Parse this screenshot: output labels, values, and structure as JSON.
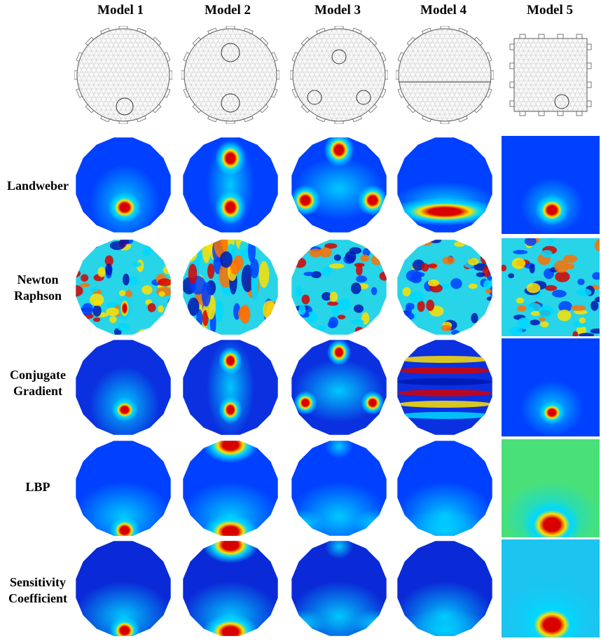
{
  "models": [
    "Model 1",
    "Model 2",
    "Model 3",
    "Model 4",
    "Model 5"
  ],
  "methods": [
    {
      "line1": "Landweber",
      "line2": ""
    },
    {
      "line1": "Newton",
      "line2": "Raphson"
    },
    {
      "line1": "Conjugate",
      "line2": "Gradient"
    },
    {
      "line1": "LBP",
      "line2": ""
    },
    {
      "line1": "Sensitivity",
      "line2": "Coefficient"
    }
  ],
  "colors": {
    "jet_low": "#00007f",
    "jet_blue": "#0040ff",
    "jet_cyan": "#00d8ff",
    "jet_yellow": "#ffe000",
    "jet_red": "#d80000",
    "mesh_line": "#9a9a9a",
    "outline": "#555555"
  }
}
